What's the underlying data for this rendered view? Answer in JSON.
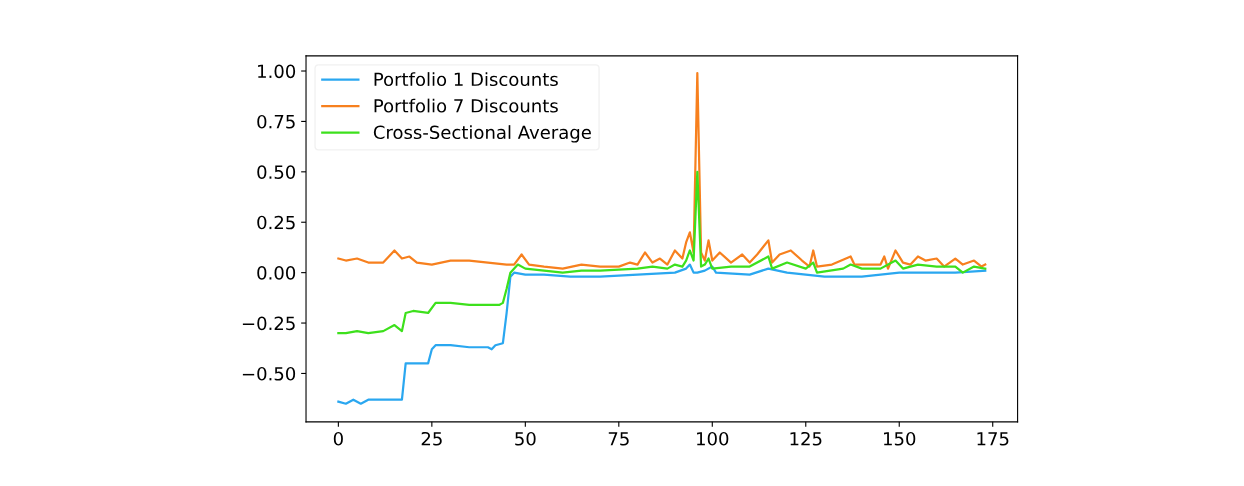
{
  "chart_data": {
    "type": "line",
    "xlim": [
      -8.65,
      181.65
    ],
    "ylim": [
      -0.74,
      1.075
    ],
    "xticks": [
      0,
      25,
      50,
      75,
      100,
      125,
      150,
      175
    ],
    "yticks": [
      {
        "value": -0.5,
        "label": "−0.50"
      },
      {
        "value": -0.25,
        "label": "−0.25"
      },
      {
        "value": 0,
        "label": "0.00"
      },
      {
        "value": 0.25,
        "label": "0.25"
      },
      {
        "value": 0.5,
        "label": "0.50"
      },
      {
        "value": 0.75,
        "label": "0.75"
      },
      {
        "value": 1,
        "label": "1.00"
      }
    ],
    "grid": false,
    "legend": "top left",
    "marker": "none",
    "line_style": "solid",
    "series": [
      {
        "name": "Portfolio 1 Discounts",
        "color": "#2aa7f0",
        "x": [
          0,
          2,
          4,
          6,
          8,
          16,
          17,
          18,
          24,
          25,
          26,
          30,
          35,
          40,
          41,
          42,
          44,
          45,
          46,
          47,
          50,
          55,
          62,
          70,
          80,
          90,
          93,
          94,
          95,
          96,
          98,
          100,
          101,
          110,
          115,
          120,
          130,
          140,
          150,
          160,
          165,
          173
        ],
        "values": [
          -0.64,
          -0.65,
          -0.63,
          -0.65,
          -0.63,
          -0.63,
          -0.63,
          -0.45,
          -0.45,
          -0.38,
          -0.36,
          -0.36,
          -0.37,
          -0.37,
          -0.38,
          -0.36,
          -0.35,
          -0.2,
          -0.02,
          0.0,
          -0.01,
          -0.01,
          -0.02,
          -0.02,
          -0.01,
          0.0,
          0.02,
          0.04,
          0.0,
          0.0,
          0.01,
          0.03,
          0.0,
          -0.01,
          0.02,
          0.0,
          -0.02,
          -0.02,
          0.0,
          0.0,
          0.0,
          0.01
        ]
      },
      {
        "name": "Portfolio 7 Discounts",
        "color": "#f7801e",
        "x": [
          0,
          2,
          5,
          8,
          12,
          15,
          17,
          19,
          21,
          25,
          30,
          35,
          40,
          45,
          47,
          49,
          51,
          55,
          60,
          65,
          70,
          75,
          78,
          80,
          82,
          84,
          86,
          88,
          90,
          92,
          93,
          94,
          95,
          96,
          97,
          98,
          99,
          100,
          102,
          105,
          108,
          110,
          112,
          115,
          116,
          118,
          121,
          124,
          126,
          127,
          128,
          132,
          137,
          138,
          145,
          146,
          147,
          149,
          151,
          153,
          155,
          157,
          160,
          162,
          165,
          167,
          170,
          172,
          173
        ],
        "values": [
          0.07,
          0.06,
          0.07,
          0.05,
          0.05,
          0.11,
          0.07,
          0.08,
          0.05,
          0.04,
          0.06,
          0.06,
          0.05,
          0.04,
          0.04,
          0.09,
          0.04,
          0.03,
          0.02,
          0.04,
          0.03,
          0.03,
          0.05,
          0.04,
          0.1,
          0.05,
          0.07,
          0.04,
          0.11,
          0.07,
          0.15,
          0.2,
          0.1,
          0.99,
          0.1,
          0.06,
          0.16,
          0.06,
          0.1,
          0.05,
          0.09,
          0.05,
          0.09,
          0.16,
          0.05,
          0.09,
          0.11,
          0.06,
          0.03,
          0.11,
          0.03,
          0.04,
          0.08,
          0.04,
          0.04,
          0.08,
          0.02,
          0.11,
          0.05,
          0.04,
          0.08,
          0.06,
          0.07,
          0.03,
          0.07,
          0.04,
          0.06,
          0.03,
          0.04
        ]
      },
      {
        "name": "Cross-Sectional Average",
        "color": "#3de01c",
        "x": [
          0,
          2,
          5,
          8,
          12,
          15,
          17,
          18,
          20,
          24,
          26,
          30,
          35,
          40,
          43,
          44,
          45,
          46,
          48,
          50,
          55,
          60,
          65,
          70,
          80,
          84,
          88,
          90,
          92,
          93,
          94,
          95,
          96,
          97,
          98,
          99,
          100,
          105,
          110,
          115,
          116,
          120,
          125,
          127,
          128,
          135,
          137,
          140,
          145,
          149,
          151,
          155,
          160,
          165,
          167,
          170,
          173
        ],
        "values": [
          -0.3,
          -0.3,
          -0.29,
          -0.3,
          -0.29,
          -0.26,
          -0.29,
          -0.2,
          -0.19,
          -0.2,
          -0.15,
          -0.15,
          -0.16,
          -0.16,
          -0.16,
          -0.15,
          -0.08,
          0.0,
          0.04,
          0.02,
          0.01,
          0.0,
          0.01,
          0.01,
          0.02,
          0.03,
          0.02,
          0.04,
          0.03,
          0.06,
          0.11,
          0.06,
          0.5,
          0.03,
          0.04,
          0.07,
          0.02,
          0.03,
          0.03,
          0.08,
          0.02,
          0.05,
          0.02,
          0.05,
          0.0,
          0.02,
          0.04,
          0.02,
          0.02,
          0.06,
          0.02,
          0.04,
          0.03,
          0.03,
          0.0,
          0.03,
          0.02
        ]
      }
    ]
  }
}
